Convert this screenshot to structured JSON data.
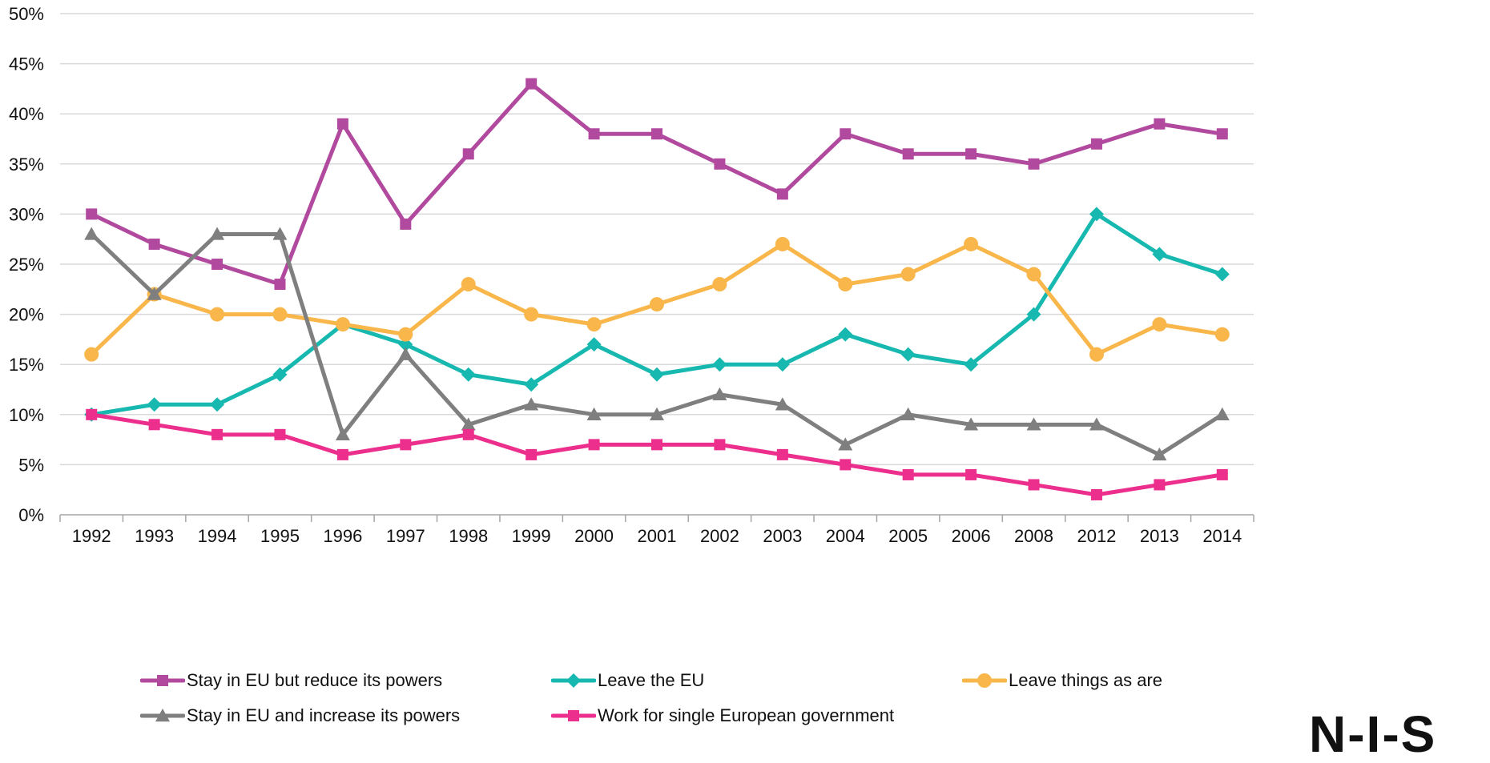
{
  "logo_text": "N-I-S",
  "chart_data": {
    "type": "line",
    "categories": [
      "1992",
      "1993",
      "1994",
      "1995",
      "1996",
      "1997",
      "1998",
      "1999",
      "2000",
      "2001",
      "2002",
      "2003",
      "2004",
      "2005",
      "2006",
      "2008",
      "2012",
      "2013",
      "2014"
    ],
    "ylim": [
      0,
      50
    ],
    "yticks": [
      "0%",
      "5%",
      "10%",
      "15%",
      "20%",
      "25%",
      "30%",
      "35%",
      "40%",
      "45%",
      "50%"
    ],
    "grid": true,
    "legend_position": "bottom",
    "title": "",
    "xlabel": "",
    "ylabel": "",
    "series": [
      {
        "name": "Stay in EU but reduce its powers",
        "color": "#b14a9e",
        "marker": "square",
        "values": [
          30,
          27,
          25,
          23,
          39,
          29,
          36,
          43,
          38,
          38,
          35,
          32,
          38,
          36,
          36,
          35,
          37,
          39,
          38
        ]
      },
      {
        "name": "Leave the EU",
        "color": "#17b8b0",
        "marker": "diamond",
        "values": [
          10,
          11,
          11,
          14,
          19,
          17,
          14,
          13,
          17,
          14,
          15,
          15,
          18,
          16,
          15,
          20,
          30,
          26,
          24
        ]
      },
      {
        "name": "Leave things as are",
        "color": "#f9b64a",
        "marker": "circle",
        "values": [
          16,
          22,
          20,
          20,
          19,
          18,
          23,
          20,
          19,
          21,
          23,
          27,
          23,
          24,
          27,
          24,
          16,
          19,
          18
        ]
      },
      {
        "name": "Stay in EU and increase its powers",
        "color": "#7f7f7f",
        "marker": "triangle",
        "values": [
          28,
          22,
          28,
          28,
          8,
          16,
          9,
          11,
          10,
          10,
          12,
          11,
          7,
          10,
          9,
          9,
          9,
          6,
          10
        ]
      },
      {
        "name": "Work for single European government",
        "color": "#ec2e8c",
        "marker": "square",
        "values": [
          10,
          9,
          8,
          8,
          6,
          7,
          8,
          6,
          7,
          7,
          7,
          6,
          5,
          4,
          4,
          3,
          2,
          3,
          4
        ]
      }
    ]
  }
}
